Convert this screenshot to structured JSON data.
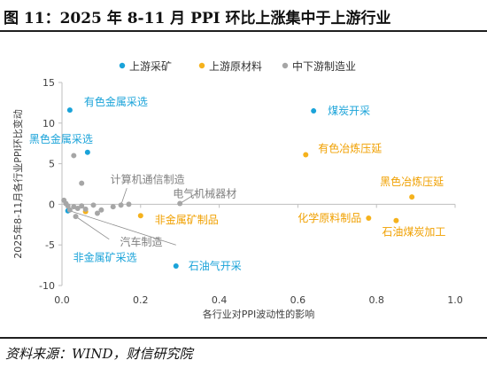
{
  "header": {
    "title": "图 11：2025 年 8-11 月 PPI 环比上涨集中于上游行业"
  },
  "footer": {
    "source": "资料来源：WIND，财信研究院"
  },
  "chart_data": {
    "type": "scatter",
    "xlabel": "各行业对PPI波动性的影响",
    "ylabel": "2025年8-11月各行业PPI环比变动",
    "xlim": [
      0,
      1.0
    ],
    "ylim": [
      -10,
      15
    ],
    "x_ticks": [
      "0.0",
      "0.2",
      "0.4",
      "0.6",
      "0.8",
      "1.0"
    ],
    "y_ticks": [
      "-10",
      "-5",
      "0",
      "5",
      "10",
      "15"
    ],
    "grid": false,
    "legend_position": "top",
    "series": [
      {
        "name": "上游采矿",
        "color": "#1aa3d9",
        "points": [
          {
            "x": 0.02,
            "y": 11.6,
            "label": "有色金属采选",
            "label_color": "#1aa3d9"
          },
          {
            "x": 0.065,
            "y": 6.4,
            "label": "黑色金属采选",
            "label_color": "#1aa3d9"
          },
          {
            "x": 0.64,
            "y": 11.5,
            "label": "煤炭开采",
            "label_color": "#1aa3d9"
          },
          {
            "x": 0.015,
            "y": -0.8,
            "label": "非金属矿采选",
            "label_color": "#1aa3d9"
          },
          {
            "x": 0.29,
            "y": -7.6,
            "label": "石油气开采",
            "label_color": "#1aa3d9"
          }
        ]
      },
      {
        "name": "上游原材料",
        "color": "#f5b21d",
        "points": [
          {
            "x": 0.62,
            "y": 6.1,
            "label": "有色冶炼压延",
            "label_color": "#f0a000"
          },
          {
            "x": 0.89,
            "y": 0.9,
            "label": "黑色冶炼压延",
            "label_color": "#f0a000"
          },
          {
            "x": 0.78,
            "y": -1.7,
            "label": "化学原料制品",
            "label_color": "#f0a000"
          },
          {
            "x": 0.85,
            "y": -2.0,
            "label": "石油煤炭加工",
            "label_color": "#f0a000"
          },
          {
            "x": 0.2,
            "y": -1.4,
            "label": "非金属矿制品",
            "label_color": "#f0a000"
          },
          {
            "x": 0.06,
            "y": -0.9
          }
        ]
      },
      {
        "name": "中下游制造业",
        "color": "#a6a6a6",
        "points": [
          {
            "x": 0.03,
            "y": 6.0
          },
          {
            "x": 0.05,
            "y": 2.6
          },
          {
            "x": 0.005,
            "y": 0.5
          },
          {
            "x": 0.01,
            "y": 0.1
          },
          {
            "x": 0.015,
            "y": -0.2
          },
          {
            "x": 0.02,
            "y": -0.7
          },
          {
            "x": 0.03,
            "y": -0.3
          },
          {
            "x": 0.04,
            "y": -0.5
          },
          {
            "x": 0.05,
            "y": -0.2
          },
          {
            "x": 0.06,
            "y": -0.6
          },
          {
            "x": 0.08,
            "y": -0.1
          },
          {
            "x": 0.09,
            "y": -1.1
          },
          {
            "x": 0.1,
            "y": -0.7
          },
          {
            "x": 0.13,
            "y": -0.3
          },
          {
            "x": 0.15,
            "y": -0.1,
            "label": "计算机通信制造",
            "label_color": "#808080"
          },
          {
            "x": 0.17,
            "y": 0.0
          },
          {
            "x": 0.3,
            "y": 0.1,
            "label": "电气机械器材",
            "label_color": "#808080"
          },
          {
            "x": 0.035,
            "y": -1.5,
            "label": "汽车制造",
            "label_color": "#808080"
          }
        ]
      }
    ]
  }
}
